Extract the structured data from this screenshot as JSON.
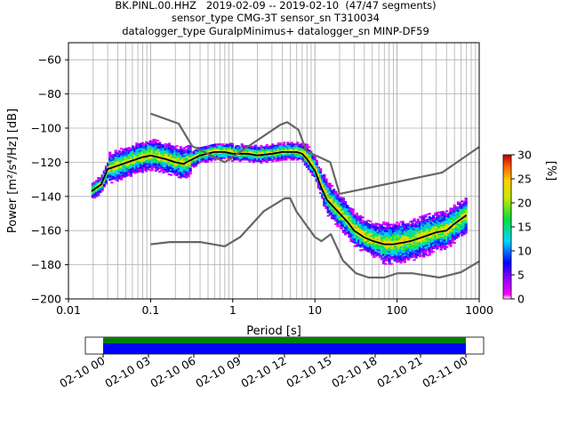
{
  "chart_data": {
    "type": "heatmap",
    "title": [
      "BK.PINL.00.HHZ   2019-02-09 -- 2019-02-10  (47/47 segments)",
      "sensor_type CMG-3T sensor_sn T310034",
      "datalogger_type GuralpMinimus+ datalogger_sn MINP-DF59"
    ],
    "xlabel": "Period [s]",
    "ylabel": "Power [m²/s⁴/Hz] [dB]",
    "xscale": "log",
    "xlim": [
      0.01,
      1000
    ],
    "ylim": [
      -200,
      -50
    ],
    "x_ticks": [
      "0.01",
      "0.1",
      "1",
      "10",
      "100",
      "1000"
    ],
    "y_ticks": [
      "−200",
      "−180",
      "−160",
      "−140",
      "−120",
      "−100",
      "−80",
      "−60"
    ],
    "grid": true,
    "colorbar": {
      "label": "[%]",
      "range": [
        0,
        30
      ],
      "ticks": [
        "0",
        "5",
        "10",
        "15",
        "20",
        "25",
        "30"
      ],
      "colormap": "pqlx"
    },
    "series": [
      {
        "name": "mean",
        "color": "#000000",
        "x": [
          0.019,
          0.025,
          0.03,
          0.04,
          0.06,
          0.08,
          0.1,
          0.15,
          0.2,
          0.25,
          0.3,
          0.4,
          0.6,
          0.8,
          1,
          1.5,
          2,
          3,
          4,
          5,
          6,
          7,
          8,
          10,
          12,
          14,
          16,
          20,
          25,
          30,
          40,
          50,
          70,
          90,
          120,
          150,
          200,
          300,
          400,
          500,
          700
        ],
        "y": [
          -137,
          -133,
          -124,
          -122,
          -119,
          -117,
          -116,
          -118,
          -120,
          -121,
          -119,
          -116,
          -114,
          -114,
          -115,
          -115,
          -116,
          -115,
          -114,
          -114,
          -114,
          -115,
          -118,
          -125,
          -135,
          -142,
          -145,
          -150,
          -155,
          -160,
          -164,
          -166,
          -168,
          -168,
          -167,
          -166,
          -164,
          -161,
          -160,
          -156,
          -151
        ]
      },
      {
        "name": "NHNM",
        "color": "#666666",
        "x": [
          0.1,
          0.22,
          0.32,
          0.8,
          3.8,
          4.6,
          6.3,
          7.9,
          15.4,
          20
        ],
        "y": [
          -91.5,
          -97.4,
          -110.5,
          -120,
          -98,
          -96.5,
          -101,
          -113.5,
          -120,
          -138.5
        ]
      },
      {
        "name": "NHNM-long",
        "color": "#666666",
        "x": [
          20,
          354.8,
          1000
        ],
        "y": [
          -138.5,
          -126,
          -111
        ]
      },
      {
        "name": "NLNM",
        "color": "#666666",
        "x": [
          0.1,
          0.17,
          0.4,
          0.8,
          1.24,
          2.4,
          4.3,
          5,
          6,
          10,
          12,
          15.6,
          21.9,
          31.6,
          45,
          70,
          101,
          154,
          328,
          600,
          1000
        ],
        "y": [
          -168,
          -166.7,
          -166.7,
          -169.2,
          -163.7,
          -148.6,
          -141.1,
          -141.1,
          -149,
          -163.8,
          -166.2,
          -162.1,
          -177.5,
          -185,
          -187.5,
          -187.5,
          -185,
          -185,
          -187.5,
          -184.4,
          -178
        ]
      }
    ],
    "time_axis": {
      "ticks": [
        "02-10 00",
        "02-10 03",
        "02-10 06",
        "02-10 09",
        "02-10 12",
        "02-10 15",
        "02-10 18",
        "02-10 21",
        "02-11 00"
      ],
      "coverage_colors": [
        "#008000",
        "#0000ff"
      ]
    }
  }
}
